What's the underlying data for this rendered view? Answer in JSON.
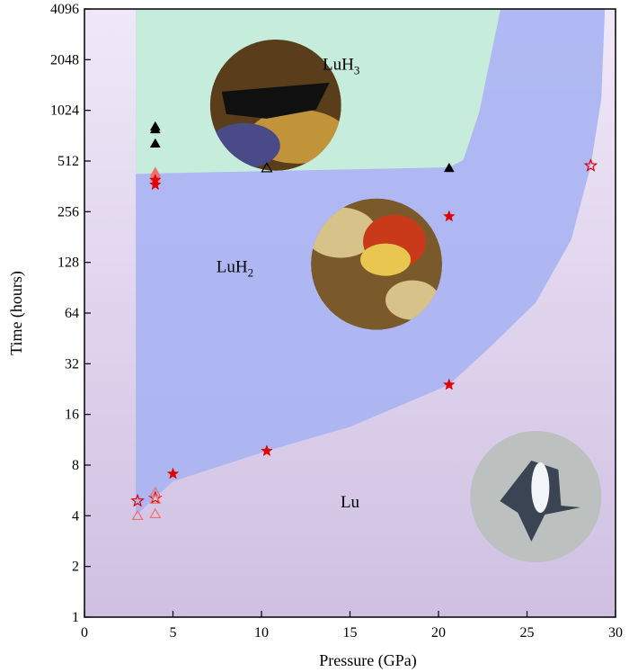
{
  "chart_data": {
    "type": "scatter",
    "title": "",
    "xlabel": "Pressure (GPa)",
    "ylabel": "Time (hours)",
    "xlim": [
      0,
      30
    ],
    "ylim": [
      1,
      4096
    ],
    "yscale": "log2",
    "xticks": [
      0,
      5,
      10,
      15,
      20,
      25,
      30
    ],
    "yticks": [
      1,
      2,
      4,
      8,
      16,
      32,
      64,
      128,
      256,
      512,
      1024,
      2048,
      4096
    ],
    "grid": false,
    "regions": [
      {
        "name": "Lu",
        "label_x": 15,
        "label_y": 4.5,
        "color": "#dcc8e6"
      },
      {
        "name": "LuH2",
        "label_x": 8.5,
        "label_y": 112,
        "color": "#a8b4f2"
      },
      {
        "name": "LuH3",
        "label_x": 14.5,
        "label_y": 1780,
        "color": "#c6ecdc"
      }
    ],
    "region_boundaries": {
      "lu_luh2": [
        [
          3.0,
          4.1
        ],
        [
          5.0,
          6.4
        ],
        [
          10.3,
          9.7
        ],
        [
          15.0,
          13.5
        ],
        [
          20.6,
          24.0
        ],
        [
          23.0,
          41
        ],
        [
          25.5,
          74
        ],
        [
          27.5,
          175
        ],
        [
          28.6,
          480
        ],
        [
          29.2,
          1200
        ],
        [
          29.4,
          4096
        ]
      ],
      "luh2_luh3": [
        [
          2.9,
          430
        ],
        [
          20.6,
          470
        ],
        [
          21.4,
          520
        ],
        [
          22.3,
          1000
        ],
        [
          23.5,
          4096
        ]
      ],
      "luh2_left_x": 2.9
    },
    "series": [
      {
        "marker": "filled-triangle",
        "color": "#000000",
        "points": [
          [
            4.0,
            650
          ],
          [
            4.0,
            790
          ],
          [
            4.0,
            820
          ],
          [
            20.6,
            465
          ]
        ]
      },
      {
        "marker": "open-triangle",
        "color": "#000000",
        "points": [
          [
            10.3,
            465
          ]
        ]
      },
      {
        "marker": "filled-triangle",
        "color": "#f07070",
        "points": [
          [
            4.0,
            410
          ],
          [
            4.0,
            430
          ],
          [
            4.0,
            440
          ]
        ]
      },
      {
        "marker": "filled-star",
        "color": "#e00000",
        "points": [
          [
            4.0,
            370
          ],
          [
            4.0,
            395
          ],
          [
            20.6,
            240
          ],
          [
            20.6,
            24.0
          ],
          [
            10.3,
            9.7
          ],
          [
            5.0,
            7.1
          ]
        ]
      },
      {
        "marker": "open-star",
        "color": "#e00000",
        "points": [
          [
            28.6,
            480
          ],
          [
            3.0,
            4.9
          ],
          [
            4.0,
            5.1
          ]
        ]
      },
      {
        "marker": "open-triangle",
        "color": "#f07070",
        "points": [
          [
            3.0,
            4.0
          ],
          [
            4.0,
            4.1
          ],
          [
            4.0,
            5.0
          ],
          [
            4.0,
            5.5
          ]
        ]
      }
    ],
    "insets": [
      {
        "name": "luh3-sample-photo",
        "x": 10.8,
        "y": 1100,
        "palette": [
          "#5a3e1c",
          "#c2943a",
          "#4a4a88",
          "#101010"
        ]
      },
      {
        "name": "luh2-sample-photo",
        "x": 16.5,
        "y": 125,
        "palette": [
          "#7a5a2a",
          "#d7c28a",
          "#c83a1a",
          "#e8c650"
        ]
      },
      {
        "name": "lu-sample-photo",
        "x": 25.5,
        "y": 5.2,
        "palette": [
          "#aab0b0",
          "#3a4452",
          "#f2f6f8",
          "#c8ccc8"
        ]
      }
    ]
  }
}
